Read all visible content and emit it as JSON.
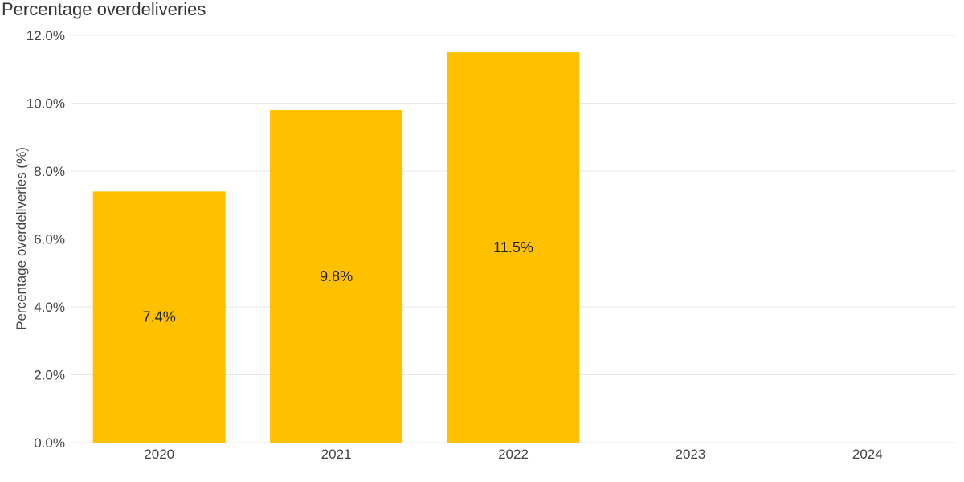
{
  "chart_data": {
    "type": "bar",
    "title": "Percentage overdeliveries",
    "xlabel": "",
    "ylabel": "Percentage overdeliveries (%)",
    "categories": [
      "2020",
      "2021",
      "2022",
      "2023",
      "2024"
    ],
    "values": [
      7.4,
      9.8,
      11.5,
      null,
      null
    ],
    "data_labels": [
      "7.4%",
      "9.8%",
      "11.5%",
      "",
      ""
    ],
    "yticks": [
      "0.0%",
      "2.0%",
      "4.0%",
      "6.0%",
      "8.0%",
      "10.0%",
      "12.0%"
    ],
    "ytick_values": [
      0,
      2,
      4,
      6,
      8,
      10,
      12
    ],
    "ylim": [
      0,
      12
    ],
    "grid": true,
    "legend": "none",
    "bar_color": "#FFC000"
  }
}
